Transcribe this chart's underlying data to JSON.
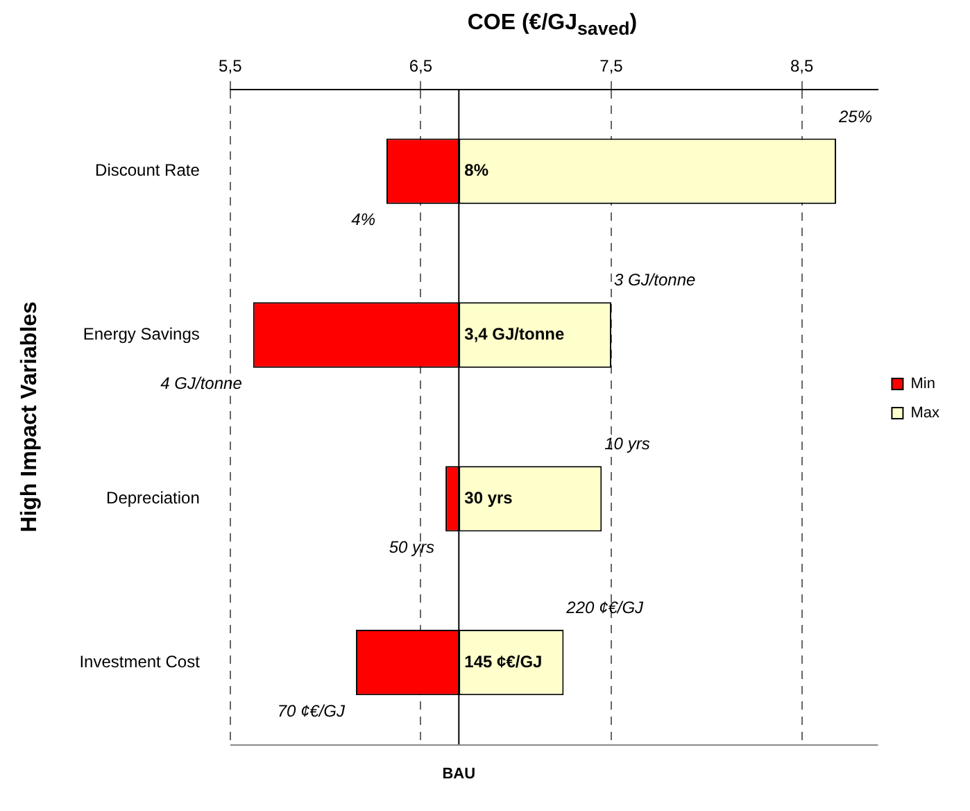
{
  "chart_data": {
    "type": "bar",
    "orientation": "horizontal",
    "xlabel": "COE (€/GJ$_{saved}$)",
    "ylabel": "High Impact Variables",
    "categories": [
      "Discount Rate",
      "Energy Savings",
      "Depreciation",
      "Investment Cost"
    ],
    "series": [
      {
        "name": "Min",
        "color": "#ff0000",
        "base": [
          6.32,
          5.62,
          6.63,
          6.16
        ],
        "values": [
          0.38,
          1.08,
          0.07,
          0.54
        ]
      },
      {
        "name": "Max",
        "color": "#ffffcc",
        "base": [
          6.7,
          6.7,
          6.7,
          6.7
        ],
        "values": [
          1.98,
          0.8,
          0.75,
          0.55
        ]
      }
    ],
    "xlim": [
      5.5,
      8.9
    ],
    "xticks": [
      {
        "value": 5.5,
        "label": "5,5"
      },
      {
        "value": 6.5,
        "label": "6,5"
      },
      {
        "value": 7.5,
        "label": "7,5"
      },
      {
        "value": 8.5,
        "label": "8,5"
      }
    ],
    "ref_lines": [
      {
        "axis": "x",
        "value": 6.7,
        "label": "BAU",
        "color": "#000000"
      }
    ],
    "annotations": [
      {
        "text": "25%",
        "x": 8.68,
        "y": "Discount Rate"
      },
      {
        "text": "4%",
        "x": 6.32,
        "y": "Discount Rate"
      },
      {
        "text": "8%",
        "x": 6.7,
        "y": "Discount Rate"
      },
      {
        "text": "3 GJ/tonne",
        "x": 7.5,
        "y": "Energy Savings"
      },
      {
        "text": "4 GJ/tonne",
        "x": 5.62,
        "y": "Energy Savings"
      },
      {
        "text": "3,4 GJ/tonne",
        "x": 6.7,
        "y": "Energy Savings"
      },
      {
        "text": "10 yrs",
        "x": 7.45,
        "y": "Depreciation"
      },
      {
        "text": "50 yrs",
        "x": 6.63,
        "y": "Depreciation"
      },
      {
        "text": "30 yrs",
        "x": 6.7,
        "y": "Depreciation"
      },
      {
        "text": "220 ¢€/GJ",
        "x": 7.25,
        "y": "Investment Cost"
      },
      {
        "text": "70 ¢€/GJ",
        "x": 6.16,
        "y": "Investment Cost"
      },
      {
        "text": "145 ¢€/GJ",
        "x": 6.7,
        "y": "Investment Cost"
      }
    ],
    "grid": "x",
    "legend": "right"
  }
}
